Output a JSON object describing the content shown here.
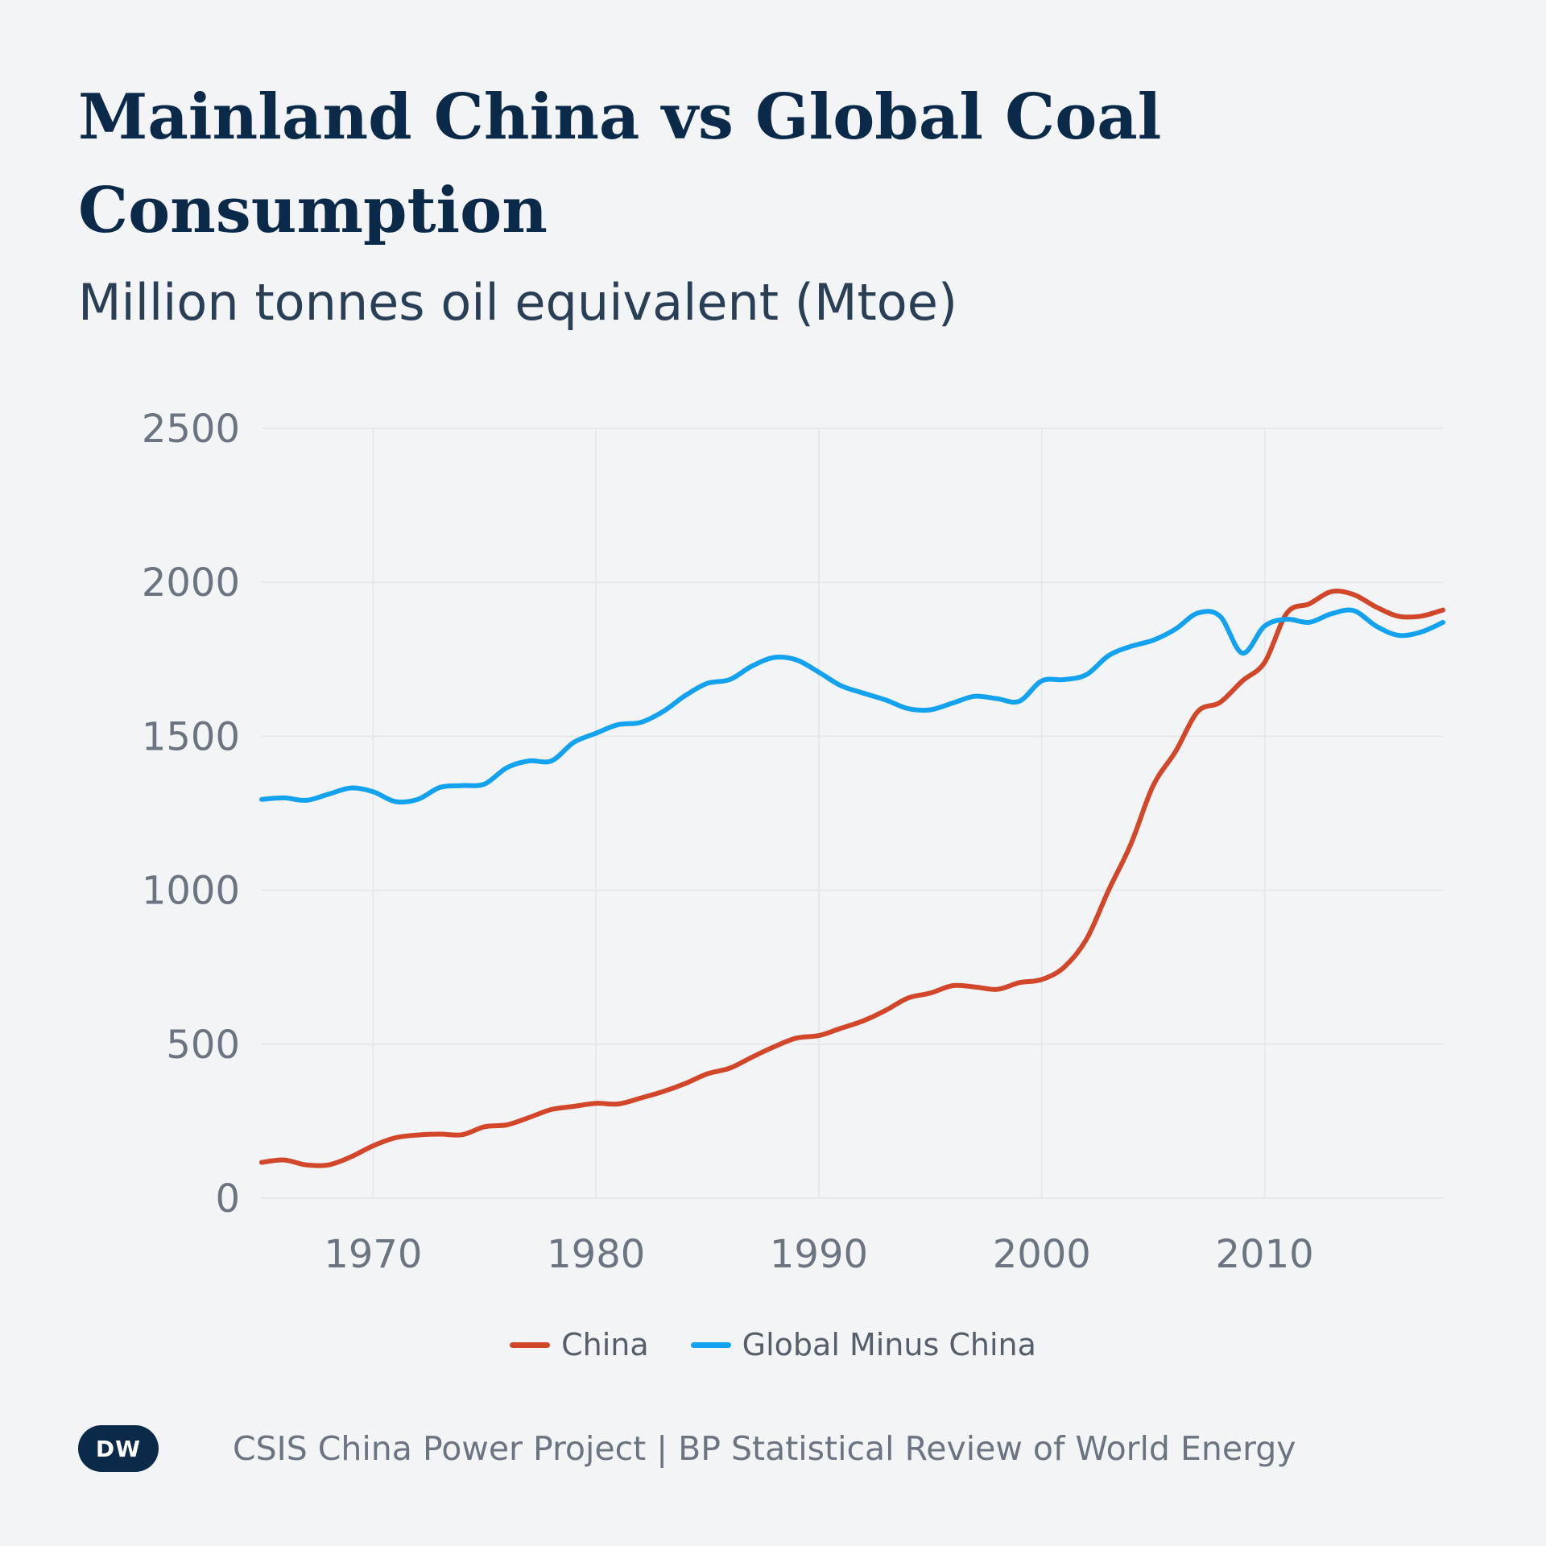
{
  "header": {
    "title": "Mainland China vs Global Coal Consumption",
    "subtitle": "Million tonnes oil equivalent (Mtoe)"
  },
  "legend": [
    {
      "label": "China",
      "color": "#d2462a"
    },
    {
      "label": "Global Minus China",
      "color": "#13a2ef"
    }
  ],
  "footer": {
    "logo_text": "DW",
    "source": "CSIS China Power Project | BP Statistical Review of World Energy"
  },
  "colors": {
    "background": "#f2f4f6",
    "grid": "#e2e5e9",
    "title": "#0b2a4a",
    "tick": "#6b7480"
  },
  "chart_data": {
    "type": "line",
    "title": "Mainland China vs Global Coal Consumption",
    "subtitle": "Million tonnes oil equivalent (Mtoe)",
    "xlabel": "",
    "ylabel": "",
    "xlim": [
      1965,
      2018
    ],
    "ylim": [
      0,
      2500
    ],
    "x_ticks": [
      1970,
      1980,
      1990,
      2000,
      2010
    ],
    "y_ticks": [
      0,
      500,
      1000,
      1500,
      2000,
      2500
    ],
    "grid": true,
    "legend_position": "bottom",
    "x": [
      1965,
      1966,
      1967,
      1968,
      1969,
      1970,
      1971,
      1972,
      1973,
      1974,
      1975,
      1976,
      1977,
      1978,
      1979,
      1980,
      1981,
      1982,
      1983,
      1984,
      1985,
      1986,
      1987,
      1988,
      1989,
      1990,
      1991,
      1992,
      1993,
      1994,
      1995,
      1996,
      1997,
      1998,
      1999,
      2000,
      2001,
      2002,
      2003,
      2004,
      2005,
      2006,
      2007,
      2008,
      2009,
      2010,
      2011,
      2012,
      2013,
      2014,
      2015,
      2016,
      2017,
      2018
    ],
    "series": [
      {
        "name": "China",
        "color": "#d2462a",
        "values": [
          116,
          124,
          108,
          108,
          134,
          170,
          196,
          205,
          208,
          206,
          232,
          238,
          262,
          288,
          298,
          308,
          306,
          325,
          346,
          372,
          404,
          422,
          458,
          492,
          520,
          528,
          552,
          576,
          610,
          650,
          666,
          690,
          686,
          678,
          700,
          710,
          750,
          840,
          1000,
          1150,
          1340,
          1450,
          1580,
          1610,
          1680,
          1740,
          1900,
          1930,
          1970,
          1960,
          1920,
          1890,
          1890,
          1910
        ]
      },
      {
        "name": "Global Minus China",
        "color": "#13a2ef",
        "values": [
          1295,
          1300,
          1292,
          1312,
          1332,
          1320,
          1288,
          1295,
          1334,
          1340,
          1345,
          1398,
          1420,
          1420,
          1480,
          1510,
          1538,
          1545,
          1580,
          1632,
          1672,
          1684,
          1728,
          1756,
          1748,
          1708,
          1664,
          1640,
          1618,
          1590,
          1586,
          1608,
          1630,
          1622,
          1614,
          1680,
          1684,
          1700,
          1762,
          1792,
          1812,
          1848,
          1900,
          1890,
          1770,
          1858,
          1880,
          1870,
          1898,
          1908,
          1858,
          1828,
          1838,
          1870
        ]
      }
    ]
  }
}
